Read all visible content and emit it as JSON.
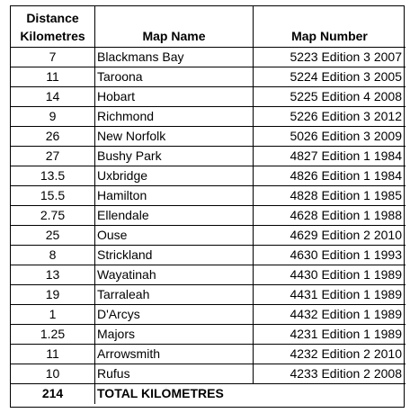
{
  "table": {
    "headers": {
      "distance_line1": "Distance",
      "distance_line2": "Kilometres",
      "map_name": "Map Name",
      "map_number": "Map Number"
    },
    "rows": [
      {
        "distance": "7",
        "map_name": "Blackmans Bay",
        "map_number": "5223 Edition 3 2007"
      },
      {
        "distance": "11",
        "map_name": "Taroona",
        "map_number": "5224 Edition 3 2005"
      },
      {
        "distance": "14",
        "map_name": "Hobart",
        "map_number": "5225 Edition 4 2008"
      },
      {
        "distance": "9",
        "map_name": "Richmond",
        "map_number": "5226 Edition 3 2012"
      },
      {
        "distance": "26",
        "map_name": "New Norfolk",
        "map_number": "5026 Edition 3 2009"
      },
      {
        "distance": "27",
        "map_name": "Bushy Park",
        "map_number": "4827 Edition 1 1984"
      },
      {
        "distance": "13.5",
        "map_name": "Uxbridge",
        "map_number": "4826 Edition 1 1984"
      },
      {
        "distance": "15.5",
        "map_name": "Hamilton",
        "map_number": "4828 Edition 1 1985"
      },
      {
        "distance": "2.75",
        "map_name": "Ellendale",
        "map_number": "4628 Edition 1 1988"
      },
      {
        "distance": "25",
        "map_name": "Ouse",
        "map_number": "4629 Edition 2 2010"
      },
      {
        "distance": "8",
        "map_name": "Strickland",
        "map_number": "4630 Edition 1 1993"
      },
      {
        "distance": "13",
        "map_name": "Wayatinah",
        "map_number": "4430 Edition 1 1989"
      },
      {
        "distance": "19",
        "map_name": "Tarraleah",
        "map_number": "4431 Edition 1 1989"
      },
      {
        "distance": "1",
        "map_name": "D'Arcys",
        "map_number": "4432 Edition 1 1989"
      },
      {
        "distance": "1.25",
        "map_name": "Majors",
        "map_number": "4231 Edition 1 1989"
      },
      {
        "distance": "11",
        "map_name": "Arrowsmith",
        "map_number": "4232 Edition 2 2010"
      },
      {
        "distance": "10",
        "map_name": "Rufus",
        "map_number": "4233 Edition 2 2008"
      }
    ],
    "total": {
      "distance": "214",
      "label": "TOTAL KILOMETRES"
    }
  }
}
